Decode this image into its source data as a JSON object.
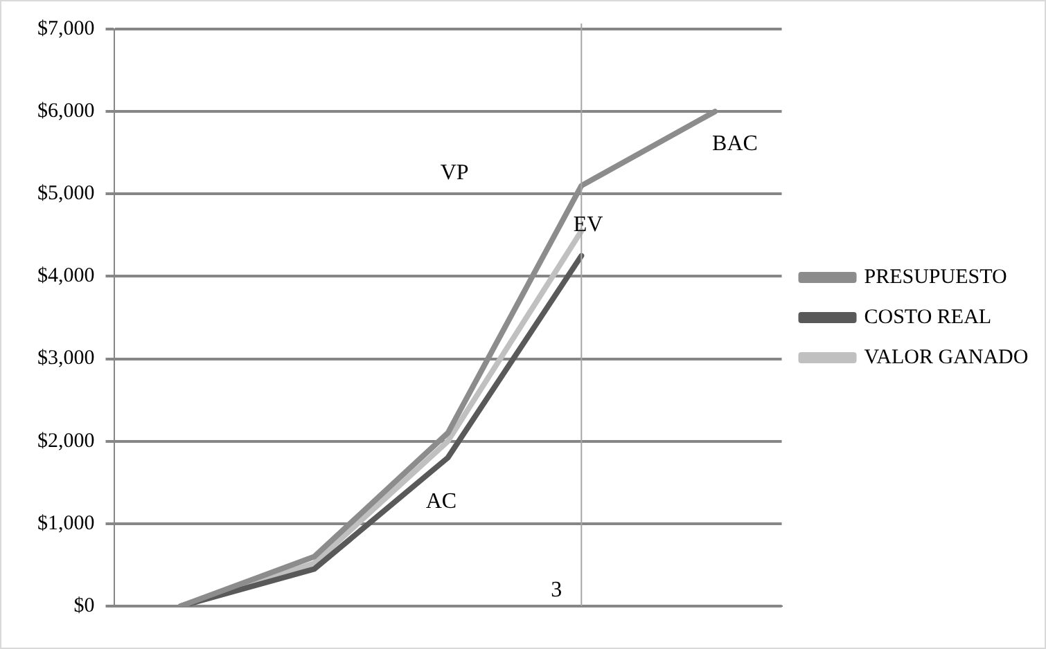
{
  "chart_data": {
    "type": "line",
    "categories": [
      null,
      null,
      null,
      "3",
      null
    ],
    "ylim": [
      0,
      7000
    ],
    "yticks": [
      {
        "value": 0,
        "label": "$0"
      },
      {
        "value": 1000,
        "label": "$1,000"
      },
      {
        "value": 2000,
        "label": "$2,000"
      },
      {
        "value": 3000,
        "label": "$3,000"
      },
      {
        "value": 4000,
        "label": "$4,000"
      },
      {
        "value": 5000,
        "label": "$5,000"
      },
      {
        "value": 6000,
        "label": "$6,000"
      },
      {
        "value": 7000,
        "label": "$7,000"
      }
    ],
    "tick_labels": "y",
    "grid": "y",
    "legend": "right",
    "marker": "none",
    "line_style": "solid",
    "series": [
      {
        "name": "PRESUPUESTO",
        "color": "#8c8c8c",
        "values": [
          0,
          600,
          2100,
          5100,
          6000
        ]
      },
      {
        "name": "COSTO REAL",
        "color": "#595959",
        "values": [
          0,
          450,
          1800,
          4250,
          null
        ]
      },
      {
        "name": "VALOR GANADO",
        "color": "#c0c0c0",
        "values": [
          0,
          520,
          2000,
          4550,
          null
        ]
      }
    ],
    "ref_lines": [
      {
        "axis": "x",
        "value": "3",
        "label": "3",
        "color": "#a6a6a6"
      }
    ],
    "annotations": [
      "VP",
      "EV",
      "AC",
      "BAC"
    ]
  }
}
